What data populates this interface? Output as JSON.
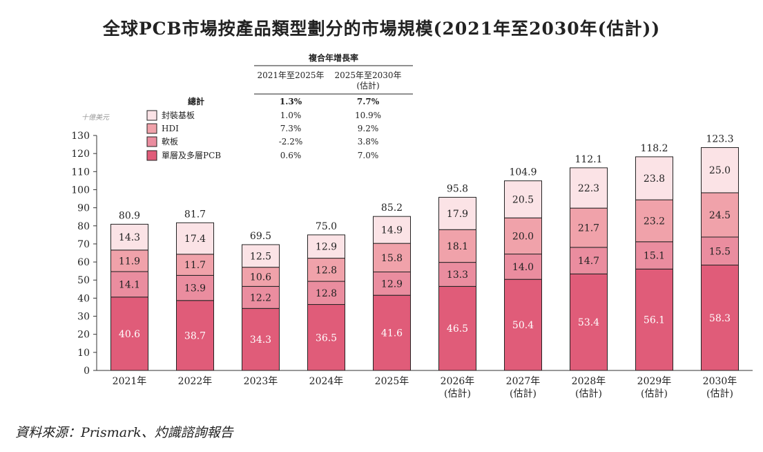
{
  "chart_data": {
    "type": "bar",
    "stacked": true,
    "title": "全球PCB市場按產品類型劃分的市場規模(2021年至2030年(估計))",
    "unit_label": "十億美元",
    "categories": [
      [
        "2021年"
      ],
      [
        "2022年"
      ],
      [
        "2023年"
      ],
      [
        "2024年"
      ],
      [
        "2025年"
      ],
      [
        "2026年",
        "(估計)"
      ],
      [
        "2027年",
        "(估計)"
      ],
      [
        "2028年",
        "(估計)"
      ],
      [
        "2029年",
        "(估計)"
      ],
      [
        "2030年",
        "(估計)"
      ]
    ],
    "series": [
      {
        "name": "單層及多層PCB",
        "color": "#e05c79",
        "values": [
          40.6,
          38.7,
          34.3,
          36.5,
          41.6,
          46.5,
          50.4,
          53.4,
          56.1,
          58.3
        ]
      },
      {
        "name": "軟板",
        "color": "#ea8d9f",
        "values": [
          14.1,
          13.9,
          12.2,
          12.8,
          12.9,
          13.3,
          14.0,
          14.7,
          15.1,
          15.5
        ]
      },
      {
        "name": "HDI",
        "color": "#f0a2aa",
        "values": [
          11.9,
          11.7,
          10.6,
          12.8,
          15.8,
          18.1,
          20.0,
          21.7,
          23.2,
          24.5
        ]
      },
      {
        "name": "封裝基板",
        "color": "#fbe3e6",
        "values": [
          14.3,
          17.4,
          12.5,
          12.9,
          14.9,
          17.9,
          20.5,
          22.3,
          23.8,
          25.0
        ]
      }
    ],
    "totals": [
      80.9,
      81.7,
      69.5,
      75.0,
      85.2,
      95.8,
      104.9,
      112.1,
      118.2,
      123.3
    ],
    "ylim": [
      0,
      130
    ],
    "yticks": [
      0,
      10,
      20,
      30,
      40,
      50,
      60,
      70,
      80,
      90,
      100,
      110,
      120,
      130
    ],
    "cagr_table": {
      "header": "複合年增長率",
      "col1": "2021年至2025年",
      "col2": [
        "2025年至2030年",
        "(估計)"
      ],
      "rows": [
        {
          "label": "總計",
          "c1": "1.3%",
          "c2": "7.7%"
        },
        {
          "label": "封裝基板",
          "c1": "1.0%",
          "c2": "10.9%"
        },
        {
          "label": "HDI",
          "c1": "7.3%",
          "c2": "9.2%"
        },
        {
          "label": "軟板",
          "c1": "-2.2%",
          "c2": "3.8%"
        },
        {
          "label": "單層及多層PCB",
          "c1": "0.6%",
          "c2": "7.0%"
        }
      ]
    },
    "legend_position": "top-left"
  },
  "source": "資料來源：Prismark、灼識諮詢報告"
}
